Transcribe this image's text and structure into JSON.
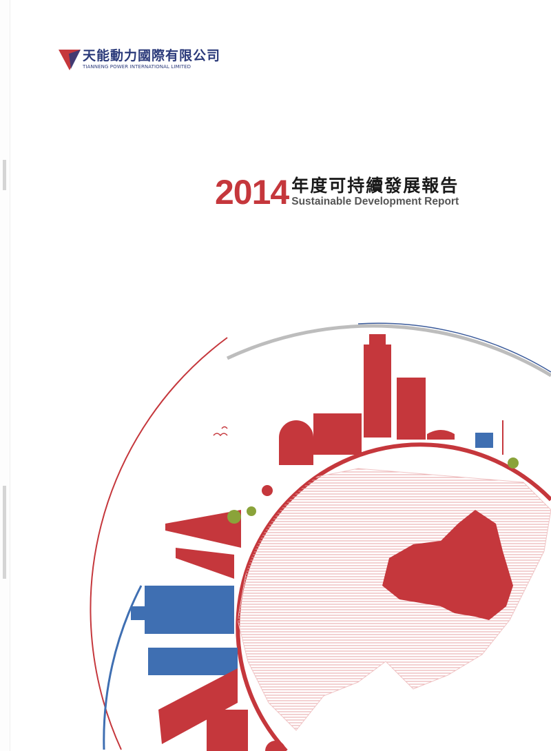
{
  "company": {
    "name_cn": "天能動力國際有限公司",
    "name_en": "TIANNENG POWER INTERNATIONAL LIMITED"
  },
  "report": {
    "year": "2014",
    "title_cn": "年度可持續發展報告",
    "title_en": "Sustainable Development Report"
  },
  "colors": {
    "brand_red": "#c5373c",
    "brand_blue": "#2b3a7a",
    "building_blue": "#3f6fb2"
  }
}
